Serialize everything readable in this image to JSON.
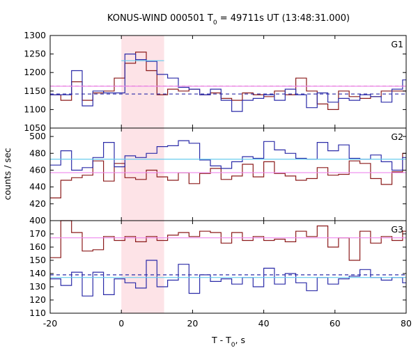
{
  "chart_data": {
    "type": "line",
    "title_main": "KONUS-WIND 000501 T",
    "title_sub": "0",
    "title_rest": " = 49711s UT (13:48:31.000)",
    "xlabel_main": "T - T",
    "xlabel_sub": "0",
    "xlabel_rest": ", s",
    "ylabel": "counts / sec",
    "xlim": [
      -20,
      80
    ],
    "x_ticks": [
      -20,
      0,
      20,
      40,
      60,
      80
    ],
    "highlight_interval": [
      0,
      12
    ],
    "colors": {
      "red": "#8b1a1a",
      "blue": "#2b2ba8",
      "pink": "#ee88ee",
      "cyan": "#66ccee",
      "shade": "#fde3e7"
    },
    "panels": [
      {
        "name": "G1",
        "ylim": [
          1050,
          1300
        ],
        "y_ticks": [
          1050,
          1100,
          1150,
          1200,
          1250,
          1300
        ],
        "series": [
          {
            "name": "red",
            "x_start": -20,
            "bin": 3,
            "values": [
              1140,
              1125,
              1175,
              1125,
              1145,
              1150,
              1185,
              1225,
              1255,
              1205,
              1140,
              1155,
              1150,
              1155,
              1140,
              1145,
              1130,
              1125,
              1145,
              1140,
              1135,
              1150,
              1140,
              1185,
              1150,
              1115,
              1100,
              1150,
              1135,
              1130,
              1135,
              1150,
              1150,
              1150
            ]
          },
          {
            "name": "blue",
            "x_start": -20,
            "bin": 3,
            "values": [
              1140,
              1140,
              1205,
              1110,
              1150,
              1145,
              1145,
              1250,
              1235,
              1230,
              1195,
              1185,
              1160,
              1155,
              1140,
              1155,
              1125,
              1095,
              1125,
              1130,
              1140,
              1125,
              1155,
              1140,
              1105,
              1145,
              1120,
              1130,
              1125,
              1140,
              1135,
              1120,
              1155,
              1180
            ]
          },
          {
            "name": "red_dashed_mean",
            "style": "dashed",
            "color": "red",
            "value": 1163
          },
          {
            "name": "blue_dashed_mean",
            "style": "dashed",
            "color": "blue",
            "value": 1142
          },
          {
            "name": "pink_fit",
            "color": "pink",
            "value": 1163
          },
          {
            "name": "cyan_fit",
            "color": "cyan",
            "x_range": [
              0,
              12
            ],
            "value": 1232
          }
        ]
      },
      {
        "name": "G2",
        "ylim": [
          400,
          510
        ],
        "y_ticks": [
          400,
          420,
          440,
          460,
          480,
          500
        ],
        "series": [
          {
            "name": "red",
            "x_start": -20,
            "bin": 3,
            "values": [
              427,
              448,
              451,
              454,
              471,
              447,
              468,
              451,
              449,
              460,
              452,
              448,
              457,
              444,
              456,
              462,
              449,
              453,
              467,
              452,
              470,
              456,
              453,
              448,
              450,
              463,
              454,
              455,
              471,
              468,
              450,
              443,
              458,
              480
            ]
          },
          {
            "name": "blue",
            "x_start": -20,
            "bin": 3,
            "values": [
              466,
              483,
              460,
              463,
              475,
              493,
              464,
              477,
              475,
              480,
              488,
              489,
              495,
              492,
              472,
              465,
              462,
              470,
              476,
              474,
              494,
              484,
              480,
              474,
              473,
              493,
              483,
              490,
              474,
              473,
              478,
              470,
              460,
              475
            ]
          },
          {
            "name": "pink_fit",
            "color": "pink",
            "value": 457
          },
          {
            "name": "cyan_fit",
            "color": "cyan",
            "value": 473
          }
        ]
      },
      {
        "name": "G3",
        "ylim": [
          110,
          180
        ],
        "y_ticks": [
          110,
          120,
          130,
          140,
          150,
          160,
          170
        ],
        "series": [
          {
            "name": "red",
            "x_start": -20,
            "bin": 3,
            "values": [
              152,
              180,
              171,
              157,
              158,
              168,
              165,
              168,
              164,
              168,
              165,
              169,
              171,
              168,
              172,
              171,
              163,
              171,
              165,
              168,
              165,
              166,
              164,
              172,
              168,
              176,
              160,
              167,
              150,
              172,
              163,
              168,
              165,
              172
            ]
          },
          {
            "name": "blue",
            "x_start": -20,
            "bin": 3,
            "values": [
              136,
              131,
              141,
              123,
              141,
              124,
              136,
              133,
              129,
              150,
              130,
              135,
              147,
              125,
              139,
              134,
              136,
              132,
              137,
              130,
              144,
              132,
              140,
              133,
              127,
              137,
              132,
              136,
              138,
              143,
              137,
              135,
              137,
              133
            ]
          },
          {
            "name": "blue_dashed_mean",
            "style": "dashed",
            "color": "blue",
            "value": 139
          },
          {
            "name": "pink_fit",
            "color": "pink",
            "value": 167
          },
          {
            "name": "cyan_fit",
            "color": "cyan",
            "value": 137
          }
        ]
      }
    ]
  }
}
